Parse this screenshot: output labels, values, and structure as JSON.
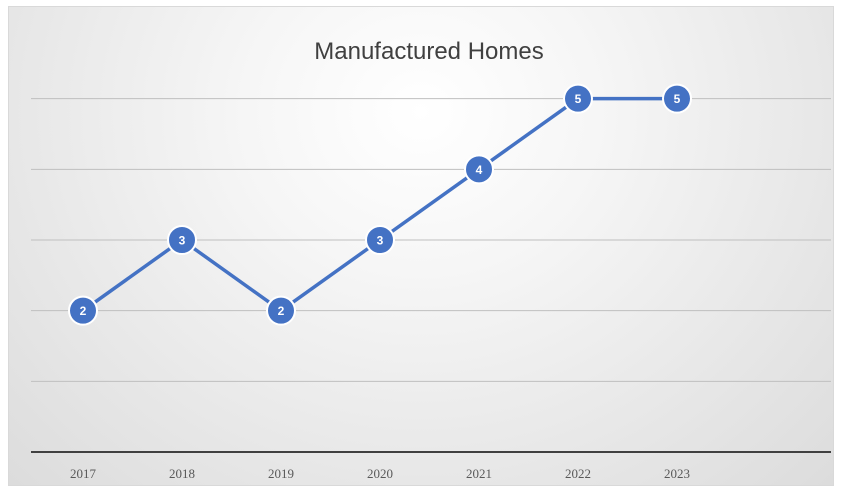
{
  "chart_data": {
    "type": "line",
    "title": "Manufactured Homes",
    "categories": [
      "2017",
      "2018",
      "2019",
      "2020",
      "2021",
      "2022",
      "2023"
    ],
    "series": [
      {
        "values": [
          2,
          3,
          2,
          3,
          4,
          5,
          5
        ]
      }
    ],
    "ylim": [
      0,
      6
    ],
    "grid": true,
    "data_labels": true,
    "legend": "none",
    "colors": {
      "line": "#4472C4",
      "marker_fill": "#4472C4",
      "marker_stroke": "#ffffff",
      "label_text": "#ffffff",
      "gridline": "#bfbfbf",
      "axis": "#404040"
    }
  }
}
